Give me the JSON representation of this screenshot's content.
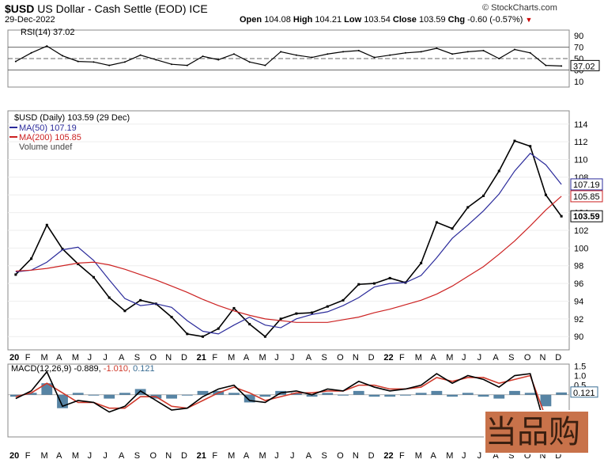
{
  "header": {
    "symbol": "$USD",
    "name": "US Dollar - Cash Settle (EOD)",
    "exchange": "ICE",
    "date": "29-Dec-2022",
    "open_label": "Open",
    "open": "104.08",
    "high_label": "High",
    "high": "104.21",
    "low_label": "Low",
    "low": "103.54",
    "close_label": "Close",
    "close": "103.59",
    "chg_label": "Chg",
    "chg": "-0.60 (-0.57%)",
    "watermark": "© StockCharts.com"
  },
  "colors": {
    "price": "#000000",
    "ma50": "#2b2b9b",
    "ma200": "#cc2222",
    "macd_line": "#000000",
    "macd_signal": "#d0392b",
    "macd_hist": "#3a6e94",
    "chg_down": "#cc0000"
  },
  "chart_data": [
    {
      "type": "line",
      "panel": "RSI",
      "legend": "RSI(14) 37.02",
      "ylim": [
        0,
        100
      ],
      "yticks": [
        "90",
        "70",
        "50",
        "30",
        "10"
      ],
      "reference_lines": [
        70,
        50,
        30
      ],
      "last_value_label": "37.02",
      "grid": false,
      "x": [
        "2020-01",
        "2020-02",
        "2020-03",
        "2020-04",
        "2020-05",
        "2020-06",
        "2020-07",
        "2020-08",
        "2020-09",
        "2020-10",
        "2020-11",
        "2020-12",
        "2021-01",
        "2021-02",
        "2021-03",
        "2021-04",
        "2021-05",
        "2021-06",
        "2021-07",
        "2021-08",
        "2021-09",
        "2021-10",
        "2021-11",
        "2021-12",
        "2022-01",
        "2022-02",
        "2022-03",
        "2022-04",
        "2022-05",
        "2022-06",
        "2022-07",
        "2022-08",
        "2022-09",
        "2022-10",
        "2022-11",
        "2022-12"
      ],
      "series": [
        {
          "name": "RSI(14)",
          "values": [
            45,
            60,
            72,
            55,
            45,
            44,
            38,
            44,
            56,
            48,
            40,
            38,
            54,
            48,
            58,
            44,
            38,
            62,
            56,
            52,
            58,
            62,
            64,
            52,
            56,
            60,
            62,
            68,
            58,
            62,
            64,
            50,
            66,
            60,
            38,
            37
          ]
        }
      ]
    },
    {
      "type": "line",
      "panel": "price",
      "title": "$USD (Daily) 103.59 (29 Dec)",
      "ylim": [
        88.5,
        115.5
      ],
      "yticks": [
        "114",
        "112",
        "110",
        "108",
        "106",
        "104",
        "102",
        "100",
        "98",
        "96",
        "94",
        "92",
        "90"
      ],
      "x_tick_labels": [
        "20",
        "F",
        "M",
        "A",
        "M",
        "J",
        "J",
        "A",
        "S",
        "O",
        "N",
        "D",
        "21",
        "F",
        "M",
        "A",
        "M",
        "J",
        "J",
        "A",
        "S",
        "O",
        "N",
        "D",
        "22",
        "F",
        "M",
        "A",
        "M",
        "J",
        "J",
        "A",
        "S",
        "O",
        "N",
        "D"
      ],
      "x": [
        "2020-01",
        "2020-02",
        "2020-03",
        "2020-04",
        "2020-05",
        "2020-06",
        "2020-07",
        "2020-08",
        "2020-09",
        "2020-10",
        "2020-11",
        "2020-12",
        "2021-01",
        "2021-02",
        "2021-03",
        "2021-04",
        "2021-05",
        "2021-06",
        "2021-07",
        "2021-08",
        "2021-09",
        "2021-10",
        "2021-11",
        "2021-12",
        "2022-01",
        "2022-02",
        "2022-03",
        "2022-04",
        "2022-05",
        "2022-06",
        "2022-07",
        "2022-08",
        "2022-09",
        "2022-10",
        "2022-11",
        "2022-12"
      ],
      "series": [
        {
          "name": "$USD",
          "values": [
            97.0,
            98.8,
            102.6,
            99.9,
            98.2,
            96.7,
            94.4,
            92.9,
            94.1,
            93.7,
            92.2,
            90.3,
            90.0,
            90.9,
            93.2,
            91.4,
            90.0,
            92.0,
            92.6,
            92.7,
            93.4,
            94.1,
            95.9,
            96.0,
            96.6,
            96.1,
            98.3,
            102.9,
            102.2,
            104.6,
            105.9,
            108.7,
            112.1,
            111.5,
            106.0,
            103.59
          ]
        },
        {
          "name": "MA(50)",
          "legend": "MA(50) 107.19",
          "last_value_label": "107.19",
          "values": [
            97.3,
            97.5,
            98.4,
            99.8,
            100.1,
            98.6,
            96.4,
            94.3,
            93.5,
            93.7,
            93.3,
            91.8,
            90.6,
            90.3,
            91.3,
            92.2,
            91.3,
            91.0,
            92.0,
            92.5,
            92.8,
            93.5,
            94.4,
            95.6,
            96.0,
            96.1,
            96.9,
            98.9,
            101.1,
            102.6,
            104.2,
            106.1,
            108.7,
            110.7,
            109.4,
            107.19
          ]
        },
        {
          "name": "MA(200)",
          "legend": "MA(200) 105.85",
          "last_value_label": "105.85",
          "values": [
            97.4,
            97.5,
            97.7,
            98.0,
            98.3,
            98.4,
            98.1,
            97.6,
            97.0,
            96.4,
            95.7,
            95.0,
            94.2,
            93.5,
            92.9,
            92.4,
            92.0,
            91.8,
            91.6,
            91.6,
            91.6,
            91.9,
            92.2,
            92.7,
            93.1,
            93.6,
            94.1,
            94.8,
            95.7,
            96.8,
            97.9,
            99.3,
            100.8,
            102.5,
            104.3,
            105.85
          ]
        }
      ],
      "legend_extra": "Volume undef",
      "last_price_label": "103.59"
    },
    {
      "type": "line",
      "panel": "MACD",
      "legend_prefix": "MACD(12,26,9)",
      "legend_macd": "-0.889",
      "legend_signal": "-1.010",
      "legend_hist": "0.121",
      "last_value_label": "0.121",
      "ylim": [
        -2.2,
        1.6
      ],
      "yticks": [
        "1.5",
        "1.0",
        "0.5"
      ],
      "x_tick_labels": [
        "20",
        "F",
        "M",
        "A",
        "M",
        "J",
        "J",
        "A",
        "S",
        "O",
        "N",
        "D",
        "21",
        "F",
        "M",
        "A",
        "M",
        "J",
        "J",
        "A",
        "S",
        "O",
        "N",
        "D",
        "22",
        "F",
        "M",
        "A",
        "M",
        "J",
        "J",
        "A",
        "S",
        "O",
        "N",
        "D"
      ],
      "x": [
        "2020-01",
        "2020-02",
        "2020-03",
        "2020-04",
        "2020-05",
        "2020-06",
        "2020-07",
        "2020-08",
        "2020-09",
        "2020-10",
        "2020-11",
        "2020-12",
        "2021-01",
        "2021-02",
        "2021-03",
        "2021-04",
        "2021-05",
        "2021-06",
        "2021-07",
        "2021-08",
        "2021-09",
        "2021-10",
        "2021-11",
        "2021-12",
        "2022-01",
        "2022-02",
        "2022-03",
        "2022-04",
        "2022-05",
        "2022-06",
        "2022-07",
        "2022-08",
        "2022-09",
        "2022-10",
        "2022-11",
        "2022-12"
      ],
      "series": [
        {
          "name": "MACD",
          "values": [
            -0.2,
            0.2,
            1.2,
            -0.6,
            -0.3,
            -0.4,
            -0.9,
            -0.6,
            0.2,
            -0.3,
            -0.8,
            -0.7,
            -0.1,
            0.3,
            0.5,
            -0.3,
            -0.4,
            0.1,
            0.2,
            0.0,
            0.3,
            0.2,
            0.7,
            0.4,
            0.2,
            0.3,
            0.5,
            1.1,
            0.6,
            1.0,
            0.8,
            0.4,
            1.0,
            1.1,
            -1.8,
            -0.889
          ]
        },
        {
          "name": "Signal",
          "values": [
            -0.1,
            0.1,
            0.6,
            0.1,
            -0.4,
            -0.4,
            -0.7,
            -0.7,
            -0.1,
            -0.1,
            -0.6,
            -0.7,
            -0.3,
            0.1,
            0.4,
            0.1,
            -0.3,
            -0.1,
            0.1,
            0.1,
            0.2,
            0.2,
            0.5,
            0.5,
            0.3,
            0.3,
            0.4,
            0.9,
            0.7,
            0.9,
            0.9,
            0.6,
            0.8,
            1.0,
            -1.2,
            -1.01
          ]
        },
        {
          "name": "Histogram",
          "values": [
            -0.1,
            0.1,
            0.6,
            -0.7,
            0.1,
            0.0,
            -0.2,
            0.1,
            0.3,
            -0.2,
            -0.2,
            0.0,
            0.2,
            0.2,
            0.1,
            -0.4,
            -0.1,
            0.2,
            0.1,
            -0.1,
            0.1,
            0.0,
            0.2,
            -0.1,
            -0.1,
            0.0,
            0.1,
            0.2,
            -0.1,
            0.1,
            -0.1,
            -0.2,
            0.2,
            0.1,
            -0.6,
            0.121
          ]
        }
      ]
    }
  ]
}
